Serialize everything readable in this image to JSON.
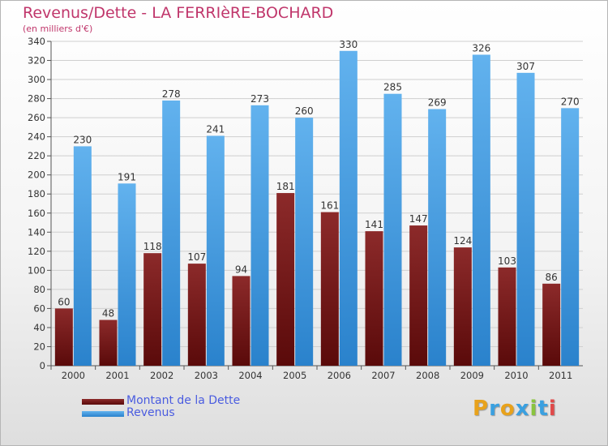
{
  "header": {
    "title": "Revenus/Dette - LA FERRIèRE-BOCHARD",
    "subtitle": "(en milliers d'€)"
  },
  "brand": {
    "logo_letters": [
      "P",
      "r",
      "o",
      "x",
      "i",
      "t",
      "i"
    ],
    "logo_colors": [
      "#e8a21c",
      "#3aa0e0",
      "#e8a21c",
      "#3aa0e0",
      "#8ac43f",
      "#3aa0e0",
      "#e04a4a"
    ]
  },
  "colors": {
    "debt_top": "#8c2a2a",
    "debt_bottom": "#5a0a0a",
    "rev_top": "#62b2ee",
    "rev_bottom": "#2a82cc",
    "axis_text": "#333333",
    "grid": "#cfcfcf"
  },
  "chart_data": {
    "type": "bar",
    "categories": [
      "2000",
      "2001",
      "2002",
      "2003",
      "2004",
      "2005",
      "2006",
      "2007",
      "2008",
      "2009",
      "2010",
      "2011"
    ],
    "series": [
      {
        "name": "Montant de la Dette",
        "values": [
          60,
          48,
          118,
          107,
          94,
          181,
          161,
          141,
          147,
          124,
          103,
          86
        ]
      },
      {
        "name": "Revenus",
        "values": [
          230,
          191,
          278,
          241,
          273,
          260,
          330,
          285,
          269,
          326,
          307,
          270
        ]
      }
    ],
    "ylim": [
      0,
      340
    ],
    "ytick_step": 20,
    "grid": true,
    "legend_position": "bottom-left"
  }
}
